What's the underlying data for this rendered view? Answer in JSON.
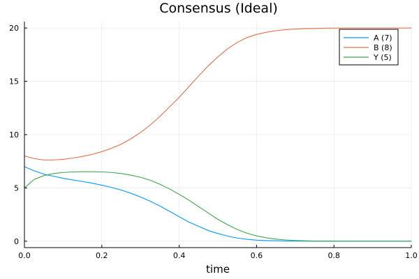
{
  "chart_data": {
    "type": "line",
    "title": "Consensus (Ideal)",
    "xlabel": "time",
    "ylabel": "",
    "xlim": [
      0,
      1
    ],
    "ylim": [
      -0.6,
      20.6
    ],
    "xticks": [
      0,
      0.2,
      0.4,
      0.6,
      0.8,
      1
    ],
    "xtick_labels": [
      "0.0",
      "0.2",
      "0.4",
      "0.6",
      "0.8",
      "1.0"
    ],
    "yticks": [
      0,
      5,
      10,
      15,
      20
    ],
    "ytick_labels": [
      "0",
      "5",
      "10",
      "15",
      "20"
    ],
    "grid": true,
    "legend_position": "top-right",
    "x": [
      0,
      0.025,
      0.05,
      0.075,
      0.1,
      0.125,
      0.15,
      0.175,
      0.2,
      0.225,
      0.25,
      0.275,
      0.3,
      0.325,
      0.35,
      0.375,
      0.4,
      0.425,
      0.45,
      0.475,
      0.5,
      0.525,
      0.55,
      0.575,
      0.6,
      0.625,
      0.65,
      0.675,
      0.7,
      0.725,
      0.75,
      0.775,
      0.8,
      0.825,
      0.85,
      0.875,
      0.9,
      0.925,
      0.95,
      0.975,
      1
    ],
    "series": [
      {
        "name": "A (7)",
        "color": "#009AFA",
        "values": [
          7.0,
          6.6,
          6.3,
          6.1,
          5.9,
          5.75,
          5.6,
          5.45,
          5.25,
          5.05,
          4.8,
          4.5,
          4.15,
          3.75,
          3.3,
          2.8,
          2.3,
          1.8,
          1.4,
          1.0,
          0.72,
          0.48,
          0.3,
          0.18,
          0.1,
          0.06,
          0.04,
          0.02,
          0.01,
          0.01,
          0.0,
          0.0,
          0.0,
          0.0,
          0.0,
          0.0,
          0.0,
          0.0,
          0.0,
          0.0,
          0.0
        ]
      },
      {
        "name": "B (8)",
        "color": "#E36F47",
        "values": [
          8.0,
          7.75,
          7.62,
          7.62,
          7.68,
          7.8,
          7.95,
          8.15,
          8.4,
          8.72,
          9.1,
          9.6,
          10.2,
          10.9,
          11.7,
          12.6,
          13.5,
          14.5,
          15.5,
          16.45,
          17.3,
          18.05,
          18.65,
          19.1,
          19.4,
          19.6,
          19.75,
          19.85,
          19.9,
          19.94,
          19.96,
          19.98,
          19.99,
          20.0,
          20.0,
          20.0,
          20.0,
          20.0,
          20.0,
          20.0,
          20.0
        ]
      },
      {
        "name": "Y (5)",
        "color": "#3EA44E",
        "values": [
          5.0,
          5.8,
          6.15,
          6.35,
          6.45,
          6.5,
          6.52,
          6.52,
          6.5,
          6.45,
          6.35,
          6.2,
          6.0,
          5.72,
          5.35,
          4.9,
          4.4,
          3.85,
          3.25,
          2.65,
          2.05,
          1.55,
          1.1,
          0.75,
          0.5,
          0.32,
          0.2,
          0.12,
          0.07,
          0.04,
          0.02,
          0.01,
          0.01,
          0.0,
          0.0,
          0.0,
          0.0,
          0.0,
          0.0,
          0.0,
          0.0
        ]
      }
    ]
  }
}
